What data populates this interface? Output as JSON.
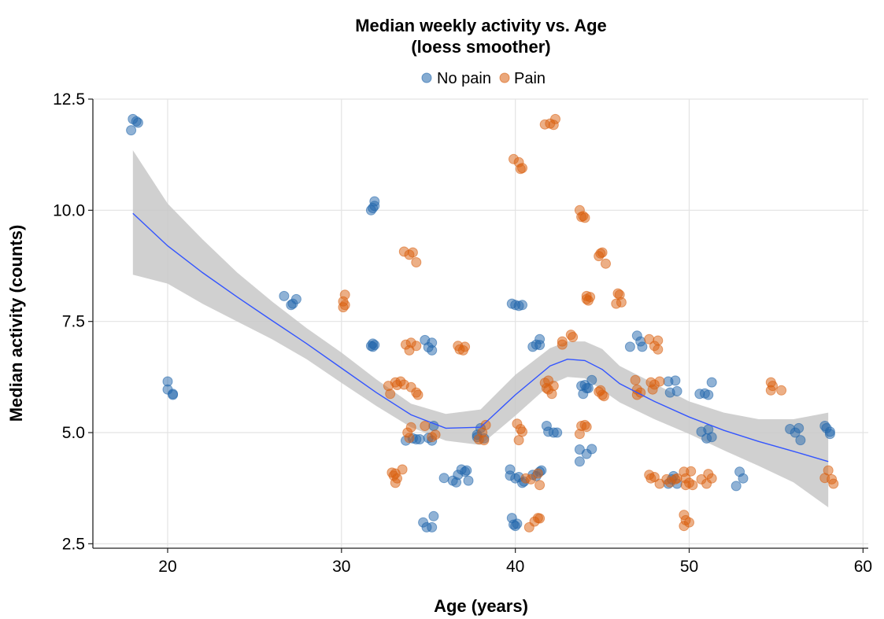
{
  "chart_data": {
    "type": "scatter",
    "title": "Median weekly activity vs. Age",
    "subtitle": "(loess smoother)",
    "xlabel": "Age (years)",
    "ylabel": "Median activity (counts)",
    "xlim": [
      15.7,
      60.3
    ],
    "ylim": [
      2.4,
      12.5
    ],
    "x_ticks": [
      20,
      30,
      40,
      50,
      60
    ],
    "x_tick_labels": [
      "20",
      "30",
      "40",
      "50",
      "60"
    ],
    "y_ticks": [
      2.5,
      5.0,
      7.5,
      10.0,
      12.5
    ],
    "y_tick_labels": [
      "2.5",
      "5.0",
      "7.5",
      "10.0",
      "12.5"
    ],
    "grid": true,
    "legend_position": "top",
    "colors": {
      "no_pain": "#2166ac",
      "pain": "#d95f0e",
      "smoother": "#3355ff",
      "band": "#c8c8c8"
    },
    "series": [
      {
        "name": "No pain",
        "key": "no_pain",
        "points": [
          [
            17.9,
            11.8
          ],
          [
            18.0,
            12.05
          ],
          [
            18.3,
            11.97
          ],
          [
            18.2,
            12.0
          ],
          [
            20.0,
            6.15
          ],
          [
            20.0,
            5.97
          ],
          [
            20.3,
            5.85
          ],
          [
            20.3,
            5.87
          ],
          [
            26.7,
            8.07
          ],
          [
            27.1,
            7.87
          ],
          [
            27.4,
            8.0
          ],
          [
            27.2,
            7.9
          ],
          [
            31.7,
            10.0
          ],
          [
            31.9,
            10.1
          ],
          [
            31.9,
            10.2
          ],
          [
            31.8,
            10.05
          ],
          [
            31.7,
            6.95
          ],
          [
            31.8,
            6.93
          ],
          [
            31.9,
            6.97
          ],
          [
            31.8,
            7.0
          ],
          [
            33.7,
            4.82
          ],
          [
            34.1,
            4.87
          ],
          [
            34.3,
            4.85
          ],
          [
            34.5,
            4.85
          ],
          [
            34.8,
            7.08
          ],
          [
            35.0,
            6.92
          ],
          [
            35.2,
            6.85
          ],
          [
            35.2,
            7.02
          ],
          [
            35.2,
            4.82
          ],
          [
            35.3,
            5.15
          ],
          [
            35.0,
            4.88
          ],
          [
            34.7,
            2.98
          ],
          [
            34.9,
            2.87
          ],
          [
            35.2,
            2.87
          ],
          [
            35.3,
            3.12
          ],
          [
            35.9,
            3.98
          ],
          [
            36.4,
            3.92
          ],
          [
            36.7,
            4.05
          ],
          [
            36.9,
            4.17
          ],
          [
            37.1,
            4.12
          ],
          [
            37.2,
            4.15
          ],
          [
            37.3,
            3.92
          ],
          [
            36.6,
            3.88
          ],
          [
            37.8,
            4.95
          ],
          [
            38.0,
            5.1
          ],
          [
            38.2,
            4.87
          ],
          [
            37.8,
            4.9
          ],
          [
            39.7,
            4.17
          ],
          [
            39.7,
            4.03
          ],
          [
            40.0,
            3.97
          ],
          [
            40.2,
            4.0
          ],
          [
            40.4,
            3.87
          ],
          [
            40.5,
            3.9
          ],
          [
            41.0,
            4.05
          ],
          [
            41.4,
            4.12
          ],
          [
            41.5,
            4.15
          ],
          [
            41.2,
            4.02
          ],
          [
            39.8,
            3.08
          ],
          [
            39.9,
            2.93
          ],
          [
            40.0,
            2.9
          ],
          [
            40.1,
            2.95
          ],
          [
            39.8,
            7.9
          ],
          [
            40.0,
            7.87
          ],
          [
            40.2,
            7.85
          ],
          [
            40.4,
            7.87
          ],
          [
            41.0,
            6.93
          ],
          [
            41.2,
            6.98
          ],
          [
            41.4,
            7.1
          ],
          [
            41.4,
            6.97
          ],
          [
            41.8,
            5.15
          ],
          [
            41.9,
            5.02
          ],
          [
            42.2,
            5.0
          ],
          [
            42.4,
            5.0
          ],
          [
            43.8,
            6.05
          ],
          [
            43.9,
            5.87
          ],
          [
            44.1,
            6.0
          ],
          [
            44.2,
            6.0
          ],
          [
            44.4,
            6.18
          ],
          [
            44.0,
            6.07
          ],
          [
            43.7,
            4.62
          ],
          [
            43.7,
            4.35
          ],
          [
            44.1,
            4.52
          ],
          [
            44.4,
            4.63
          ],
          [
            46.6,
            6.93
          ],
          [
            47.0,
            7.18
          ],
          [
            47.2,
            7.05
          ],
          [
            47.3,
            6.93
          ],
          [
            48.8,
            6.15
          ],
          [
            48.9,
            5.9
          ],
          [
            49.2,
            6.17
          ],
          [
            49.3,
            5.93
          ],
          [
            48.8,
            3.85
          ],
          [
            49.0,
            3.95
          ],
          [
            49.1,
            4.02
          ],
          [
            49.3,
            3.85
          ],
          [
            50.6,
            5.87
          ],
          [
            50.9,
            5.88
          ],
          [
            51.1,
            5.85
          ],
          [
            51.3,
            6.13
          ],
          [
            50.7,
            5.02
          ],
          [
            51.0,
            4.87
          ],
          [
            51.1,
            5.07
          ],
          [
            51.3,
            4.9
          ],
          [
            52.7,
            3.8
          ],
          [
            52.9,
            4.12
          ],
          [
            53.1,
            3.97
          ],
          [
            55.8,
            5.08
          ],
          [
            56.1,
            5.0
          ],
          [
            56.3,
            5.1
          ],
          [
            56.4,
            4.83
          ],
          [
            57.8,
            5.15
          ],
          [
            57.9,
            5.1
          ],
          [
            58.1,
            4.97
          ],
          [
            58.1,
            5.02
          ]
        ]
      },
      {
        "name": "Pain",
        "key": "pain",
        "points": [
          [
            30.2,
            8.1
          ],
          [
            30.1,
            7.95
          ],
          [
            30.2,
            7.87
          ],
          [
            30.1,
            7.82
          ],
          [
            32.7,
            6.05
          ],
          [
            32.8,
            5.87
          ],
          [
            33.1,
            6.13
          ],
          [
            33.4,
            6.15
          ],
          [
            33.2,
            6.07
          ],
          [
            33.6,
            6.08
          ],
          [
            32.9,
            4.1
          ],
          [
            33.0,
            4.03
          ],
          [
            33.1,
            3.87
          ],
          [
            33.2,
            3.97
          ],
          [
            33.5,
            4.17
          ],
          [
            33.1,
            4.08
          ],
          [
            33.6,
            9.07
          ],
          [
            33.9,
            9.0
          ],
          [
            34.1,
            9.05
          ],
          [
            34.3,
            8.83
          ],
          [
            33.7,
            6.98
          ],
          [
            34.0,
            7.02
          ],
          [
            34.3,
            6.95
          ],
          [
            33.9,
            6.85
          ],
          [
            33.8,
            5.0
          ],
          [
            34.0,
            5.12
          ],
          [
            33.9,
            4.88
          ],
          [
            34.3,
            5.9
          ],
          [
            34.4,
            5.85
          ],
          [
            34.0,
            6.02
          ],
          [
            34.8,
            5.15
          ],
          [
            35.2,
            4.9
          ],
          [
            35.4,
            4.95
          ],
          [
            36.7,
            6.95
          ],
          [
            36.8,
            6.87
          ],
          [
            37.1,
            6.93
          ],
          [
            37.0,
            6.85
          ],
          [
            37.9,
            4.85
          ],
          [
            38.1,
            5.0
          ],
          [
            38.3,
            5.17
          ],
          [
            38.2,
            4.83
          ],
          [
            39.9,
            11.15
          ],
          [
            40.2,
            11.08
          ],
          [
            40.3,
            10.93
          ],
          [
            40.4,
            10.95
          ],
          [
            40.1,
            5.2
          ],
          [
            40.3,
            5.08
          ],
          [
            40.4,
            5.02
          ],
          [
            40.2,
            4.83
          ],
          [
            40.6,
            3.97
          ],
          [
            40.9,
            3.95
          ],
          [
            41.3,
            4.08
          ],
          [
            41.4,
            3.82
          ],
          [
            40.8,
            2.87
          ],
          [
            41.1,
            3.0
          ],
          [
            41.3,
            3.08
          ],
          [
            41.4,
            3.07
          ],
          [
            41.7,
            11.93
          ],
          [
            42.0,
            11.95
          ],
          [
            42.2,
            11.92
          ],
          [
            42.3,
            12.05
          ],
          [
            41.7,
            6.12
          ],
          [
            41.8,
            6.0
          ],
          [
            41.9,
            6.17
          ],
          [
            41.9,
            5.97
          ],
          [
            42.1,
            5.87
          ],
          [
            42.2,
            6.05
          ],
          [
            42.7,
            7.05
          ],
          [
            42.7,
            6.98
          ],
          [
            43.2,
            7.2
          ],
          [
            43.3,
            7.15
          ],
          [
            43.7,
            10.0
          ],
          [
            43.8,
            9.85
          ],
          [
            43.9,
            9.87
          ],
          [
            44.0,
            9.83
          ],
          [
            43.8,
            5.15
          ],
          [
            43.7,
            4.97
          ],
          [
            44.0,
            5.17
          ],
          [
            44.1,
            5.13
          ],
          [
            44.1,
            8.07
          ],
          [
            44.3,
            8.05
          ],
          [
            44.2,
            7.97
          ],
          [
            44.1,
            8.0
          ],
          [
            44.8,
            8.97
          ],
          [
            45.0,
            9.05
          ],
          [
            45.2,
            8.8
          ],
          [
            44.9,
            9.03
          ],
          [
            44.8,
            5.92
          ],
          [
            45.0,
            5.85
          ],
          [
            45.1,
            5.82
          ],
          [
            44.9,
            5.95
          ],
          [
            45.8,
            7.9
          ],
          [
            45.9,
            8.13
          ],
          [
            46.0,
            8.1
          ],
          [
            46.1,
            7.93
          ],
          [
            46.9,
            6.18
          ],
          [
            47.0,
            5.85
          ],
          [
            47.0,
            5.97
          ],
          [
            47.2,
            5.9
          ],
          [
            47.7,
            7.1
          ],
          [
            48.0,
            6.95
          ],
          [
            48.2,
            7.07
          ],
          [
            48.2,
            6.87
          ],
          [
            47.7,
            4.05
          ],
          [
            48.0,
            4.0
          ],
          [
            48.3,
            3.85
          ],
          [
            47.8,
            3.97
          ],
          [
            47.8,
            6.13
          ],
          [
            48.0,
            6.08
          ],
          [
            48.3,
            6.15
          ],
          [
            47.9,
            5.97
          ],
          [
            48.7,
            3.95
          ],
          [
            48.9,
            3.88
          ],
          [
            49.2,
            3.95
          ],
          [
            49.3,
            3.97
          ],
          [
            49.7,
            4.12
          ],
          [
            49.8,
            3.97
          ],
          [
            50.0,
            3.87
          ],
          [
            50.2,
            3.82
          ],
          [
            50.1,
            4.13
          ],
          [
            49.8,
            3.82
          ],
          [
            49.7,
            3.15
          ],
          [
            49.8,
            3.03
          ],
          [
            49.7,
            2.9
          ],
          [
            50.0,
            2.98
          ],
          [
            50.7,
            3.95
          ],
          [
            51.0,
            3.85
          ],
          [
            51.1,
            4.07
          ],
          [
            51.3,
            3.97
          ],
          [
            54.7,
            6.13
          ],
          [
            54.8,
            6.05
          ],
          [
            54.7,
            5.95
          ],
          [
            55.3,
            5.95
          ],
          [
            57.8,
            3.98
          ],
          [
            58.0,
            4.15
          ],
          [
            58.2,
            3.95
          ],
          [
            58.3,
            3.85
          ]
        ]
      }
    ],
    "smoother": {
      "name": "loess",
      "x": [
        18,
        20,
        22,
        24,
        26,
        28,
        30,
        32,
        34,
        36,
        38,
        40,
        42,
        43,
        44,
        45,
        46,
        48,
        50,
        52,
        54,
        56,
        58
      ],
      "y": [
        9.93,
        9.2,
        8.6,
        8.05,
        7.52,
        7.0,
        6.45,
        5.9,
        5.4,
        5.1,
        5.12,
        5.85,
        6.5,
        6.65,
        6.62,
        6.42,
        6.1,
        5.7,
        5.35,
        5.05,
        4.8,
        4.58,
        4.35
      ],
      "upper": [
        11.35,
        10.15,
        9.35,
        8.6,
        7.95,
        7.35,
        6.8,
        6.2,
        5.65,
        5.42,
        5.52,
        6.3,
        6.9,
        7.05,
        7.05,
        6.88,
        6.5,
        6.1,
        5.7,
        5.45,
        5.3,
        5.3,
        5.45
      ],
      "lower": [
        8.55,
        8.35,
        7.9,
        7.5,
        7.1,
        6.65,
        6.12,
        5.6,
        5.12,
        4.82,
        4.72,
        5.38,
        6.08,
        6.25,
        6.22,
        5.95,
        5.68,
        5.3,
        4.97,
        4.6,
        4.25,
        3.88,
        3.32
      ]
    }
  }
}
